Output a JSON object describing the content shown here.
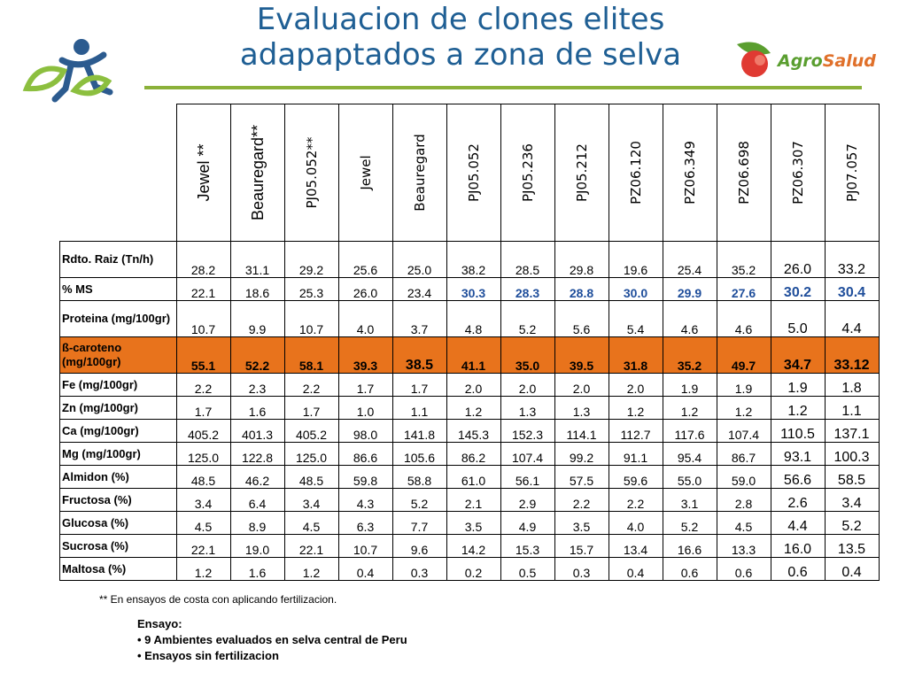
{
  "title_line1": "Evaluacion de clones elites",
  "title_line2": "adapaptados a zona de selva",
  "brand_agro": "Agro",
  "brand_salud": "Salud",
  "columns": [
    "Jewel **",
    "Beauregard**",
    "PJ05.052**",
    "Jewel",
    "Beauregard",
    "PJ05.052",
    "PJ05.236",
    "PJ05.212",
    "PZ06.120",
    "PZ06.349",
    "PZ06.698",
    "PZ06.307",
    "PJ07.057"
  ],
  "rows": [
    {
      "label": "Rdto. Raiz (Tn/h)",
      "values": [
        "28.2",
        "31.1",
        "29.2",
        "25.6",
        "25.0",
        "38.2",
        "28.5",
        "29.8",
        "19.6",
        "25.4",
        "35.2",
        "26.0",
        "33.2"
      ]
    },
    {
      "label": "% MS",
      "values": [
        "22.1",
        "18.6",
        "25.3",
        "26.0",
        "23.4",
        "30.3",
        "28.3",
        "28.8",
        "30.0",
        "29.9",
        "27.6",
        "30.2",
        "30.4"
      ]
    },
    {
      "label": "Proteina (mg/100gr)",
      "values": [
        "10.7",
        "9.9",
        "10.7",
        "4.0",
        "3.7",
        "4.8",
        "5.2",
        "5.6",
        "5.4",
        "4.6",
        "4.6",
        "5.0",
        "4.4"
      ]
    },
    {
      "label": "ß-caroteno (mg/100gr)",
      "values": [
        "55.1",
        "52.2",
        "58.1",
        "39.3",
        "38.5",
        "41.1",
        "35.0",
        "39.5",
        "31.8",
        "35.2",
        "49.7",
        "34.7",
        "33.12"
      ]
    },
    {
      "label": "Fe (mg/100gr)",
      "values": [
        "2.2",
        "2.3",
        "2.2",
        "1.7",
        "1.7",
        "2.0",
        "2.0",
        "2.0",
        "2.0",
        "1.9",
        "1.9",
        "1.9",
        "1.8"
      ]
    },
    {
      "label": "Zn (mg/100gr)",
      "values": [
        "1.7",
        "1.6",
        "1.7",
        "1.0",
        "1.1",
        "1.2",
        "1.3",
        "1.3",
        "1.2",
        "1.2",
        "1.2",
        "1.2",
        "1.1"
      ]
    },
    {
      "label": "Ca (mg/100gr)",
      "values": [
        "405.2",
        "401.3",
        "405.2",
        "98.0",
        "141.8",
        "145.3",
        "152.3",
        "114.1",
        "112.7",
        "117.6",
        "107.4",
        "110.5",
        "137.1"
      ]
    },
    {
      "label": "Mg (mg/100gr)",
      "values": [
        "125.0",
        "122.8",
        "125.0",
        "86.6",
        "105.6",
        "86.2",
        "107.4",
        "99.2",
        "91.1",
        "95.4",
        "86.7",
        "93.1",
        "100.3"
      ]
    },
    {
      "label": "Almidon (%)",
      "values": [
        "48.5",
        "46.2",
        "48.5",
        "59.8",
        "58.8",
        "61.0",
        "56.1",
        "57.5",
        "59.6",
        "55.0",
        "59.0",
        "56.6",
        "58.5"
      ]
    },
    {
      "label": "Fructosa (%)",
      "values": [
        "3.4",
        "6.4",
        "3.4",
        "4.3",
        "5.2",
        "2.1",
        "2.9",
        "2.2",
        "2.2",
        "3.1",
        "2.8",
        "2.6",
        "3.4"
      ]
    },
    {
      "label": "Glucosa (%)",
      "values": [
        "4.5",
        "8.9",
        "4.5",
        "6.3",
        "7.7",
        "3.5",
        "4.9",
        "3.5",
        "4.0",
        "5.2",
        "4.5",
        "4.4",
        "5.2"
      ]
    },
    {
      "label": "Sucrosa (%)",
      "values": [
        "22.1",
        "19.0",
        "22.1",
        "10.7",
        "9.6",
        "14.2",
        "15.3",
        "15.7",
        "13.4",
        "16.6",
        "13.3",
        "16.0",
        "13.5"
      ]
    },
    {
      "label": "Maltosa (%)",
      "values": [
        "1.2",
        "1.6",
        "1.2",
        "0.4",
        "0.3",
        "0.2",
        "0.5",
        "0.3",
        "0.4",
        "0.6",
        "0.6",
        "0.6",
        "0.4"
      ]
    }
  ],
  "highlight_color": "#e8731c",
  "accent_blue": "#1f4e9b",
  "footnote": "** En ensayos de costa con aplicando fertilizacion.",
  "notes": {
    "heading": "Ensayo:",
    "items": [
      "• 9 Ambientes evaluados en selva central de Peru",
      "• Ensayos sin fertilizacion"
    ]
  },
  "logos": [
    "stick-figure-plant-logo",
    "agrosalud-logo"
  ]
}
